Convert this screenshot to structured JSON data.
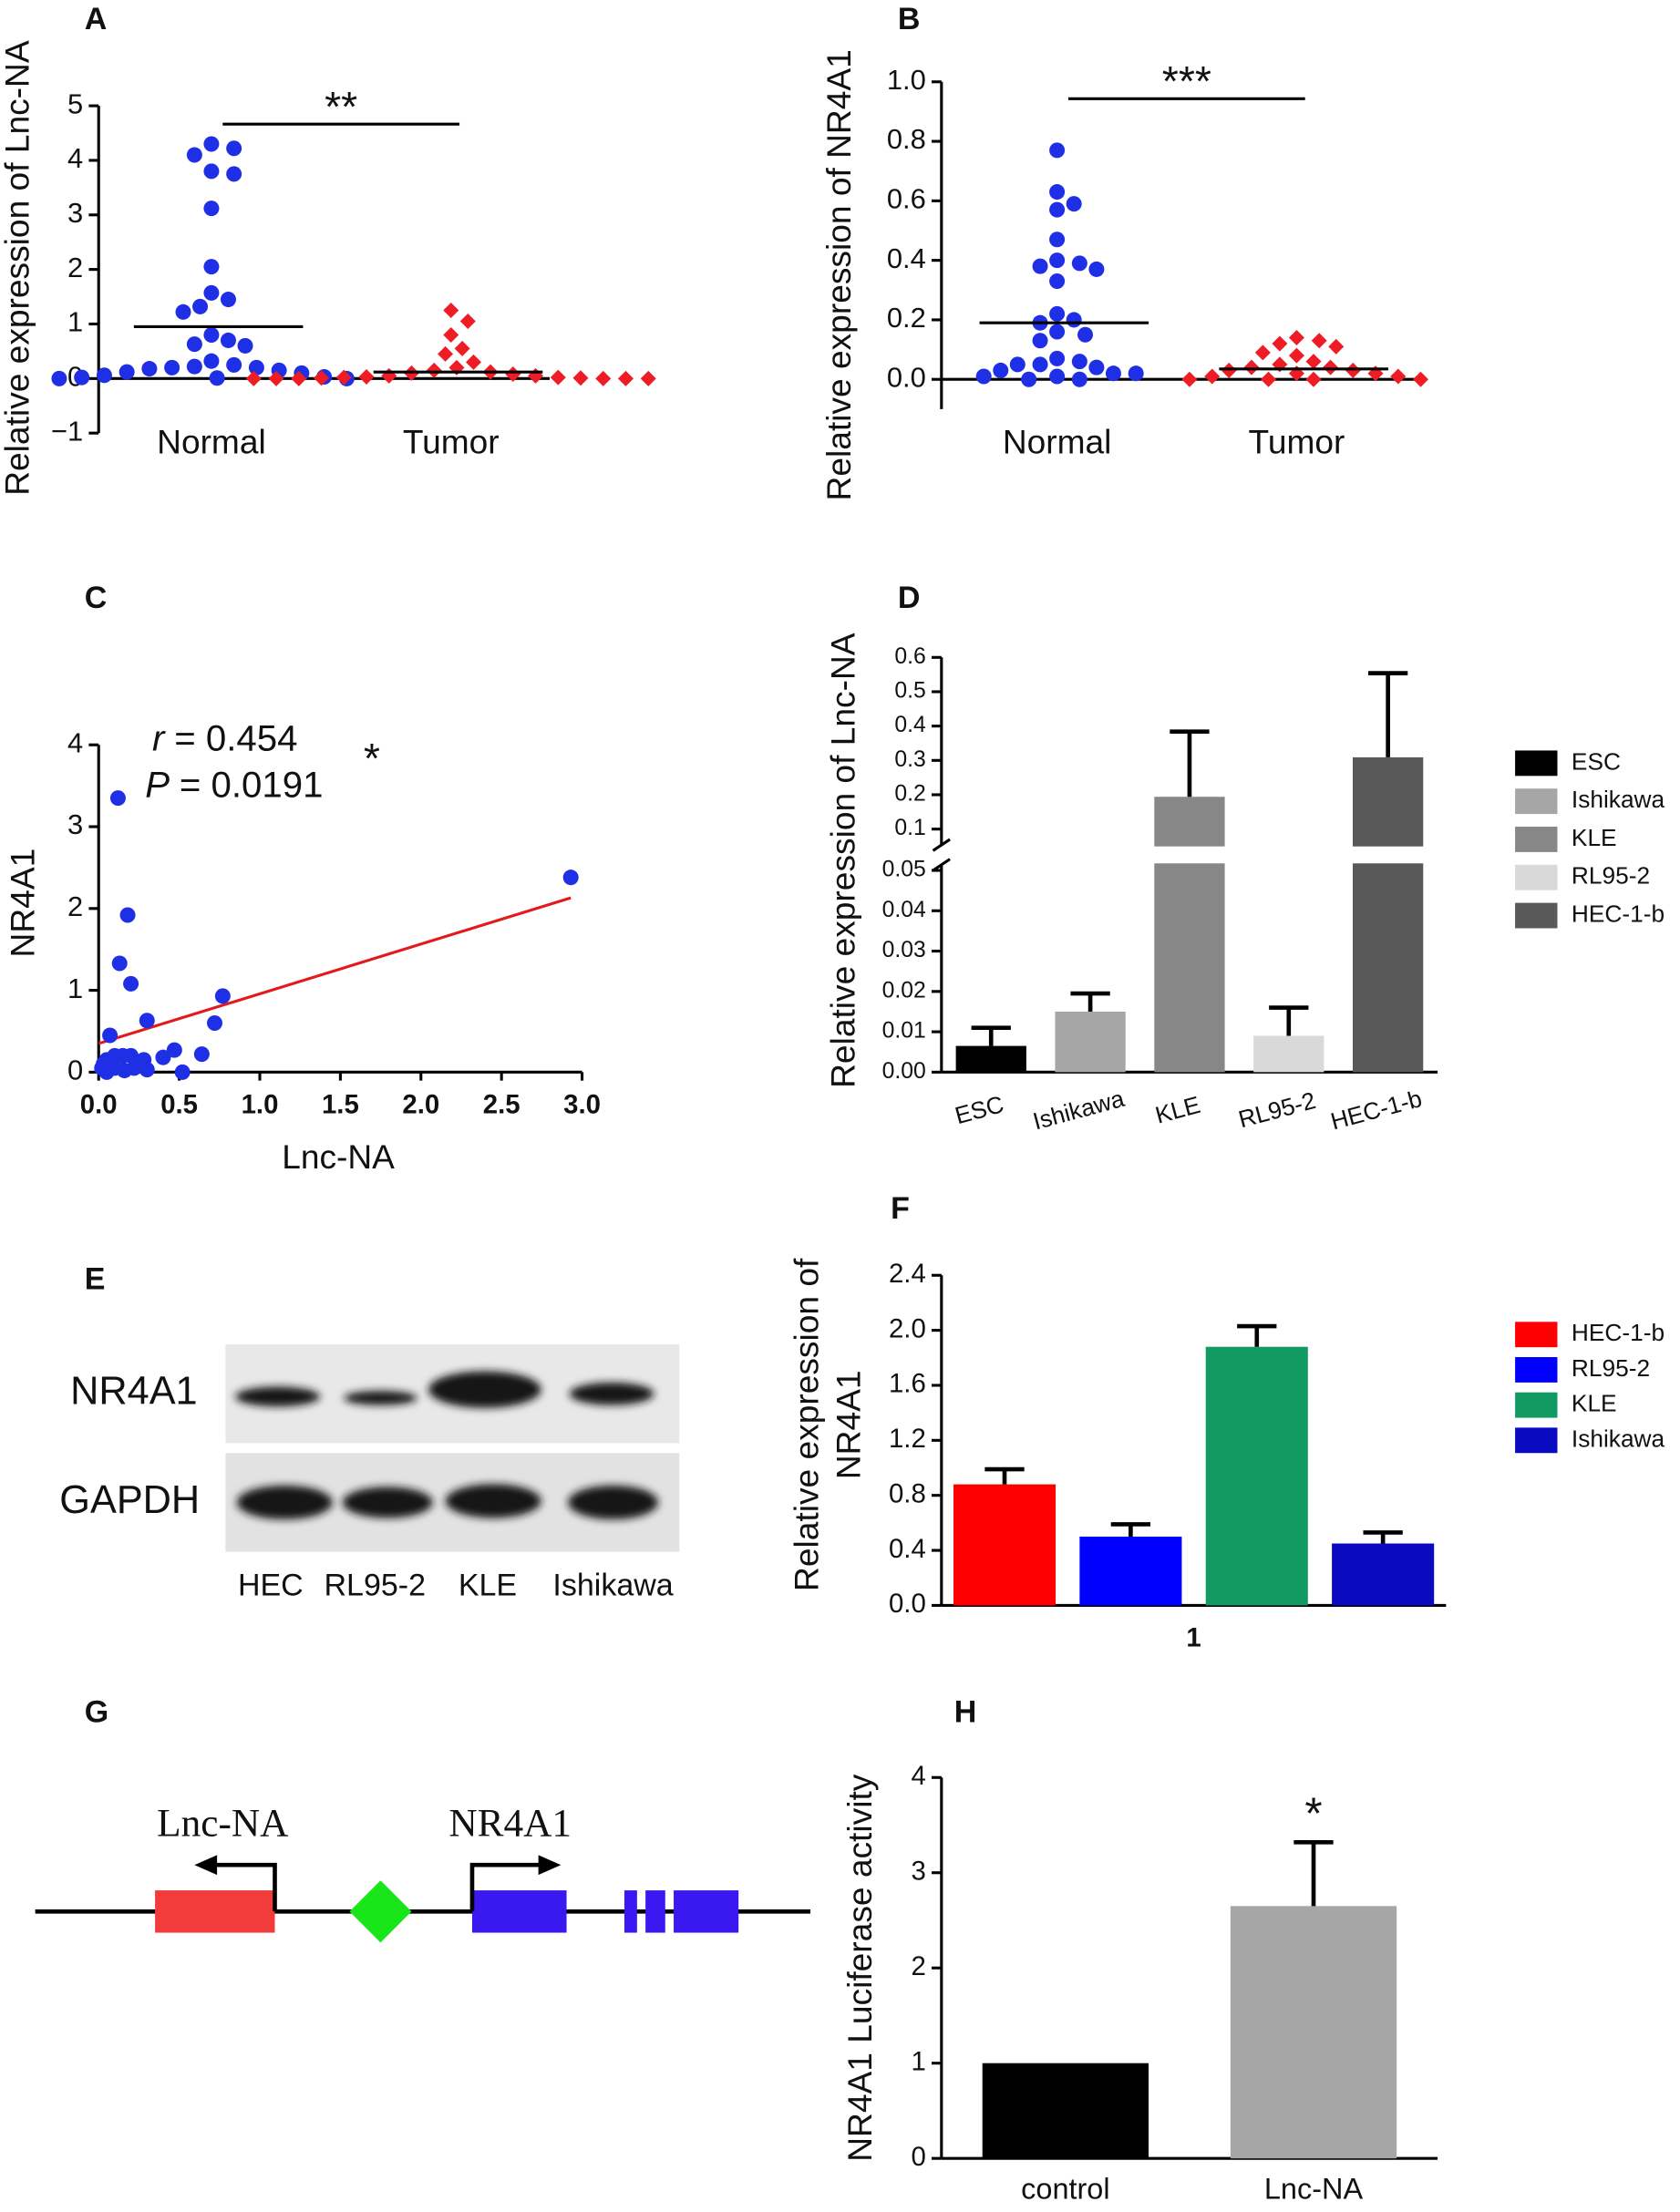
{
  "chart_data": [
    {
      "panel": "A",
      "type": "dot",
      "ylabel": "Relative expression of Lnc-NA",
      "categories": [
        "Normal",
        "Tumor"
      ],
      "values": [
        [
          4.3,
          4.22,
          4.1,
          3.8,
          3.75,
          3.12,
          2.05,
          1.57,
          1.45,
          1.32,
          1.22,
          0.8,
          0.7,
          0.63,
          0.6,
          0.32,
          0.25,
          0.22,
          0.2,
          0.2,
          0.18,
          0.15,
          0.12,
          0.1,
          0.06,
          0.03,
          0.02,
          0.01,
          0,
          0
        ],
        [
          1.25,
          1.05,
          0.8,
          0.55,
          0.45,
          0.3,
          0.2,
          0.15,
          0.12,
          0.1,
          0.08,
          0.05,
          0.05,
          0.03,
          0.02,
          0.02,
          0.01,
          0.01,
          0,
          0,
          0,
          0,
          0,
          0
        ]
      ],
      "colors": [
        "#1f2fe6",
        "#ee1c25"
      ],
      "markers": [
        "circle",
        "diamond"
      ],
      "means": [
        0.95,
        0.12
      ],
      "significance": "**",
      "ylim": [
        -1,
        5
      ],
      "yticks": [
        {
          "value": -1,
          "label": "−1"
        },
        0,
        1,
        2,
        3,
        4,
        5
      ]
    },
    {
      "panel": "B",
      "type": "dot",
      "ylabel": "Relative expression of NR4A1",
      "categories": [
        "Normal",
        "Tumor"
      ],
      "values": [
        [
          0.77,
          0.63,
          0.59,
          0.57,
          0.47,
          0.4,
          0.39,
          0.38,
          0.37,
          0.33,
          0.22,
          0.2,
          0.19,
          0.16,
          0.15,
          0.13,
          0.07,
          0.06,
          0.05,
          0.05,
          0.04,
          0.03,
          0.02,
          0.02,
          0.01,
          0.01,
          0,
          0
        ],
        [
          0.14,
          0.13,
          0.12,
          0.11,
          0.09,
          0.08,
          0.06,
          0.05,
          0.04,
          0.04,
          0.03,
          0.03,
          0.02,
          0.02,
          0.01,
          0.01,
          0,
          0,
          0,
          0
        ]
      ],
      "colors": [
        "#1f2fe6",
        "#ee1c25"
      ],
      "markers": [
        "circle",
        "diamond"
      ],
      "means": [
        0.19,
        0.035
      ],
      "significance": "***",
      "ylim": [
        -0.1,
        1
      ],
      "yticks": [
        {
          "value": 0,
          "label": "0.0"
        },
        0.2,
        0.4,
        0.6,
        0.8,
        {
          "value": 1,
          "label": "1.0"
        }
      ]
    },
    {
      "panel": "C",
      "type": "scatter",
      "xlabel": "Lnc-NA",
      "ylabel": "NR4A1",
      "x": [
        2.93,
        0.12,
        0.18,
        0.13,
        0.2,
        0.77,
        0.72,
        0.07,
        0.3,
        0.47,
        0.64,
        0.1,
        0.15,
        0.2,
        0.05,
        0.03,
        0.08,
        0.25,
        0.28,
        0.4,
        0.02,
        0.1,
        0.22,
        0.16,
        0.52,
        0.05,
        0.3
      ],
      "y": [
        2.38,
        3.35,
        1.92,
        1.33,
        1.08,
        0.93,
        0.6,
        0.45,
        0.63,
        0.27,
        0.22,
        0.2,
        0.2,
        0.2,
        0.15,
        0.1,
        0.1,
        0.12,
        0.15,
        0.18,
        0.05,
        0.05,
        0.05,
        0.02,
        0,
        0,
        0.03
      ],
      "color": "#1f2fe6",
      "fit": {
        "x": [
          0,
          2.93
        ],
        "y": [
          0.35,
          2.13
        ],
        "color": "#e31a1c"
      },
      "annotations": [
        {
          "italic": "r",
          "text": "= 0.454"
        },
        {
          "italic": "P",
          "text": "= 0.0191"
        },
        {
          "text": "*"
        }
      ],
      "xlim": [
        0,
        3
      ],
      "xticks": [
        {
          "value": 0,
          "label": "0.0"
        },
        0.5,
        {
          "value": 1,
          "label": "1.0"
        },
        1.5,
        {
          "value": 2,
          "label": "2.0"
        },
        2.5,
        {
          "value": 3,
          "label": "3.0"
        }
      ],
      "ylim": [
        0,
        4
      ],
      "yticks": [
        0,
        1,
        2,
        3,
        4
      ]
    },
    {
      "panel": "D",
      "type": "bar",
      "ylabel": "Relative expression of Lnc-NA",
      "categories": [
        "ESC",
        "Ishikawa",
        "KLE",
        "RL95-2",
        "HEC-1-b"
      ],
      "values": [
        0.0065,
        0.015,
        0.194,
        0.009,
        0.309
      ],
      "errors": [
        0.0045,
        0.0045,
        0.19,
        0.007,
        0.245
      ],
      "colors": [
        "#000000",
        "#a6a6a6",
        "#878787",
        "#d9d9d9",
        "#595959"
      ],
      "legend": "right",
      "ylim": [
        0,
        0.6
      ],
      "ybreak": [
        0.05,
        0.07
      ],
      "yticks": [
        {
          "value": 0,
          "label": "0.00"
        },
        0.01,
        0.02,
        0.03,
        0.04,
        0.05,
        0.1,
        0.2,
        0.3,
        0.4,
        0.5,
        0.6
      ]
    },
    {
      "panel": "F",
      "type": "bar",
      "ylabel": [
        "Relative expression of",
        "NR4A1"
      ],
      "categories": [
        "1"
      ],
      "series": [
        {
          "name": "HEC-1-b",
          "color": "#ff0000",
          "values": [
            0.88
          ],
          "errors": [
            0.11
          ]
        },
        {
          "name": "RL95-2",
          "color": "#0000ff",
          "values": [
            0.5
          ],
          "errors": [
            0.09
          ]
        },
        {
          "name": "KLE",
          "color": "#119b63",
          "values": [
            1.88
          ],
          "errors": [
            0.15
          ]
        },
        {
          "name": "Ishikawa",
          "color": "#0a0ac0",
          "values": [
            0.45
          ],
          "errors": [
            0.08
          ]
        }
      ],
      "legend": "right",
      "ylim": [
        0,
        2.4
      ],
      "yticks": [
        {
          "value": 0,
          "label": "0.0"
        },
        0.4,
        0.8,
        1.2,
        1.6,
        {
          "value": 2,
          "label": "2.0"
        },
        2.4
      ]
    },
    {
      "panel": "H",
      "type": "bar",
      "ylabel": "NR4A1 Luciferase activity",
      "categories": [
        "control",
        "Lnc-NA"
      ],
      "values": [
        1,
        2.65
      ],
      "errors": [
        null,
        0.67
      ],
      "colors": [
        "#000000",
        "#a6a6a6"
      ],
      "value_annotations": [
        null,
        "*"
      ],
      "ylim": [
        0,
        4
      ],
      "yticks": [
        0,
        1,
        2,
        3,
        4
      ]
    }
  ],
  "blot": {
    "panel": "E",
    "rows": [
      "NR4A1",
      "GAPDH"
    ],
    "lanes": [
      "HEC",
      "RL95-2",
      "KLE",
      "Ishikawa"
    ]
  },
  "gene_map": {
    "panel": "G",
    "labels": [
      "Lnc-NA",
      "NR4A1"
    ]
  }
}
